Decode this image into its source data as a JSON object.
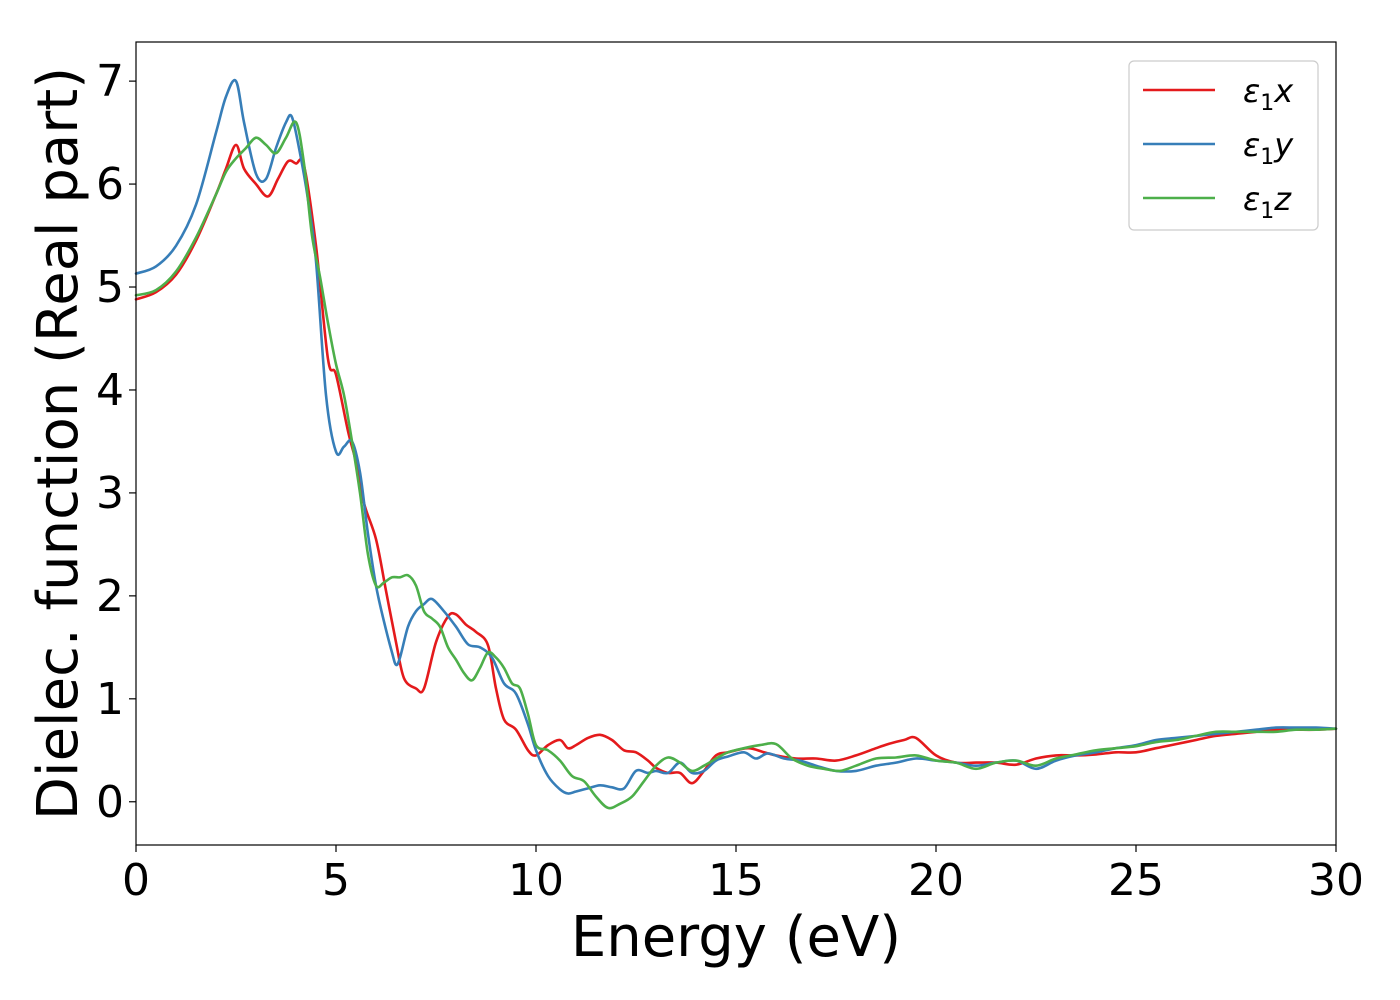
{
  "chart_data": {
    "type": "line",
    "title": "",
    "xlabel": "Energy (eV)",
    "ylabel": "Dielec. function (Real part)",
    "xlim": [
      0,
      30
    ],
    "ylim": [
      -0.42,
      7.38
    ],
    "xticks": [
      0,
      5,
      10,
      15,
      20,
      25,
      30
    ],
    "yticks": [
      0,
      1,
      2,
      3,
      4,
      5,
      6,
      7
    ],
    "grid": false,
    "legend_position": "top-right",
    "series": [
      {
        "name": "ε₁x",
        "legend_main": "ε",
        "legend_sub": "1",
        "legend_suffix": "x",
        "color": "#e41a1c",
        "x": [
          0,
          0.5,
          1,
          1.5,
          2,
          2.25,
          2.5,
          2.7,
          3,
          3.3,
          3.55,
          3.8,
          4,
          4.2,
          4.5,
          4.8,
          5,
          5.3,
          5.5,
          5.7,
          6,
          6.25,
          6.5,
          6.7,
          7,
          7.2,
          7.5,
          7.8,
          8,
          8.25,
          8.5,
          8.8,
          9,
          9.2,
          9.5,
          9.8,
          10,
          10.3,
          10.6,
          10.8,
          11,
          11.3,
          11.6,
          11.9,
          12.2,
          12.5,
          12.8,
          13,
          13.3,
          13.6,
          13.9,
          14.2,
          14.5,
          14.8,
          15.3,
          15.7,
          16,
          16.5,
          17,
          17.5,
          18,
          18.5,
          18.8,
          19.2,
          19.5,
          20,
          20.5,
          21,
          21.5,
          22,
          22.5,
          23,
          23.5,
          24,
          24.5,
          25,
          25.5,
          26,
          26.5,
          27,
          27.5,
          28,
          28.5,
          29,
          29.5,
          30
        ],
        "y": [
          4.88,
          4.95,
          5.12,
          5.45,
          5.9,
          6.15,
          6.38,
          6.15,
          6.0,
          5.88,
          6.05,
          6.22,
          6.2,
          6.18,
          5.4,
          4.3,
          4.15,
          3.6,
          3.3,
          2.9,
          2.55,
          2.05,
          1.55,
          1.2,
          1.1,
          1.1,
          1.55,
          1.8,
          1.82,
          1.72,
          1.65,
          1.52,
          1.1,
          0.8,
          0.7,
          0.5,
          0.45,
          0.55,
          0.6,
          0.52,
          0.55,
          0.62,
          0.65,
          0.6,
          0.5,
          0.48,
          0.4,
          0.33,
          0.28,
          0.28,
          0.18,
          0.3,
          0.45,
          0.48,
          0.52,
          0.48,
          0.45,
          0.42,
          0.42,
          0.4,
          0.45,
          0.52,
          0.56,
          0.6,
          0.62,
          0.45,
          0.38,
          0.38,
          0.38,
          0.36,
          0.42,
          0.45,
          0.45,
          0.46,
          0.48,
          0.48,
          0.52,
          0.56,
          0.6,
          0.64,
          0.66,
          0.68,
          0.7,
          0.7,
          0.7,
          0.71
        ]
      },
      {
        "name": "ε₁y",
        "legend_main": "ε",
        "legend_sub": "1",
        "legend_suffix": "y",
        "color": "#377eb8",
        "x": [
          0,
          0.5,
          1,
          1.5,
          2,
          2.25,
          2.5,
          2.7,
          3,
          3.25,
          3.5,
          3.75,
          3.9,
          4.1,
          4.3,
          4.5,
          4.75,
          5,
          5.2,
          5.4,
          5.6,
          5.8,
          6,
          6.2,
          6.4,
          6.5,
          6.6,
          6.8,
          7,
          7.2,
          7.4,
          7.7,
          8,
          8.3,
          8.6,
          8.9,
          9.2,
          9.5,
          9.8,
          10,
          10.3,
          10.6,
          10.8,
          11,
          11.3,
          11.6,
          11.9,
          12.2,
          12.5,
          12.8,
          13,
          13.3,
          13.6,
          13.9,
          14.2,
          14.5,
          14.8,
          15.2,
          15.5,
          15.8,
          16.2,
          16.6,
          17,
          17.5,
          18,
          18.5,
          19,
          19.5,
          20,
          20.5,
          21,
          21.5,
          22,
          22.5,
          23,
          23.5,
          24,
          24.5,
          25,
          25.5,
          26,
          26.5,
          27,
          27.5,
          28,
          28.5,
          29,
          29.5,
          30
        ],
        "y": [
          5.13,
          5.2,
          5.4,
          5.8,
          6.5,
          6.85,
          7.0,
          6.6,
          6.1,
          6.05,
          6.35,
          6.6,
          6.65,
          6.3,
          5.85,
          5.25,
          3.95,
          3.4,
          3.45,
          3.5,
          3.2,
          2.6,
          2.1,
          1.75,
          1.45,
          1.33,
          1.4,
          1.7,
          1.85,
          1.92,
          1.97,
          1.85,
          1.7,
          1.53,
          1.5,
          1.4,
          1.15,
          1.05,
          0.75,
          0.5,
          0.25,
          0.12,
          0.08,
          0.1,
          0.13,
          0.16,
          0.14,
          0.13,
          0.3,
          0.28,
          0.3,
          0.28,
          0.38,
          0.28,
          0.3,
          0.4,
          0.44,
          0.48,
          0.42,
          0.47,
          0.42,
          0.4,
          0.35,
          0.3,
          0.3,
          0.35,
          0.38,
          0.42,
          0.4,
          0.38,
          0.35,
          0.38,
          0.4,
          0.32,
          0.4,
          0.45,
          0.48,
          0.52,
          0.55,
          0.6,
          0.62,
          0.64,
          0.66,
          0.68,
          0.7,
          0.72,
          0.72,
          0.72,
          0.71
        ]
      },
      {
        "name": "ε₁z",
        "legend_main": "ε",
        "legend_sub": "1",
        "legend_suffix": "z",
        "color": "#4daf4a",
        "x": [
          0,
          0.5,
          1,
          1.5,
          2,
          2.25,
          2.5,
          2.75,
          3,
          3.25,
          3.5,
          3.75,
          4,
          4.2,
          4.4,
          4.6,
          4.8,
          5,
          5.2,
          5.4,
          5.6,
          5.8,
          6,
          6.2,
          6.4,
          6.6,
          6.8,
          7,
          7.2,
          7.4,
          7.6,
          7.8,
          8,
          8.2,
          8.4,
          8.6,
          8.8,
          9,
          9.2,
          9.4,
          9.6,
          9.8,
          10,
          10.3,
          10.6,
          10.9,
          11.2,
          11.5,
          11.8,
          12.1,
          12.4,
          12.7,
          13,
          13.3,
          13.6,
          13.9,
          14.2,
          14.5,
          14.8,
          15.2,
          15.6,
          16,
          16.4,
          16.8,
          17.2,
          17.6,
          18,
          18.5,
          19,
          19.5,
          20,
          20.5,
          21,
          21.5,
          22,
          22.5,
          23,
          23.5,
          24,
          24.5,
          25,
          25.5,
          26,
          26.5,
          27,
          27.5,
          28,
          28.5,
          29,
          29.5,
          30
        ],
        "y": [
          4.92,
          4.97,
          5.15,
          5.48,
          5.9,
          6.12,
          6.25,
          6.35,
          6.45,
          6.38,
          6.3,
          6.45,
          6.6,
          6.2,
          5.5,
          5.1,
          4.65,
          4.25,
          3.95,
          3.5,
          3.0,
          2.4,
          2.1,
          2.13,
          2.18,
          2.18,
          2.2,
          2.1,
          1.85,
          1.78,
          1.7,
          1.5,
          1.38,
          1.25,
          1.18,
          1.3,
          1.45,
          1.4,
          1.3,
          1.15,
          1.1,
          0.85,
          0.55,
          0.5,
          0.4,
          0.25,
          0.2,
          0.05,
          -0.06,
          -0.02,
          0.05,
          0.2,
          0.35,
          0.43,
          0.38,
          0.3,
          0.35,
          0.42,
          0.48,
          0.52,
          0.55,
          0.56,
          0.42,
          0.35,
          0.32,
          0.3,
          0.35,
          0.42,
          0.43,
          0.45,
          0.4,
          0.38,
          0.32,
          0.38,
          0.4,
          0.35,
          0.42,
          0.46,
          0.5,
          0.52,
          0.54,
          0.58,
          0.6,
          0.64,
          0.68,
          0.68,
          0.68,
          0.68,
          0.7,
          0.7,
          0.71
        ]
      }
    ]
  }
}
